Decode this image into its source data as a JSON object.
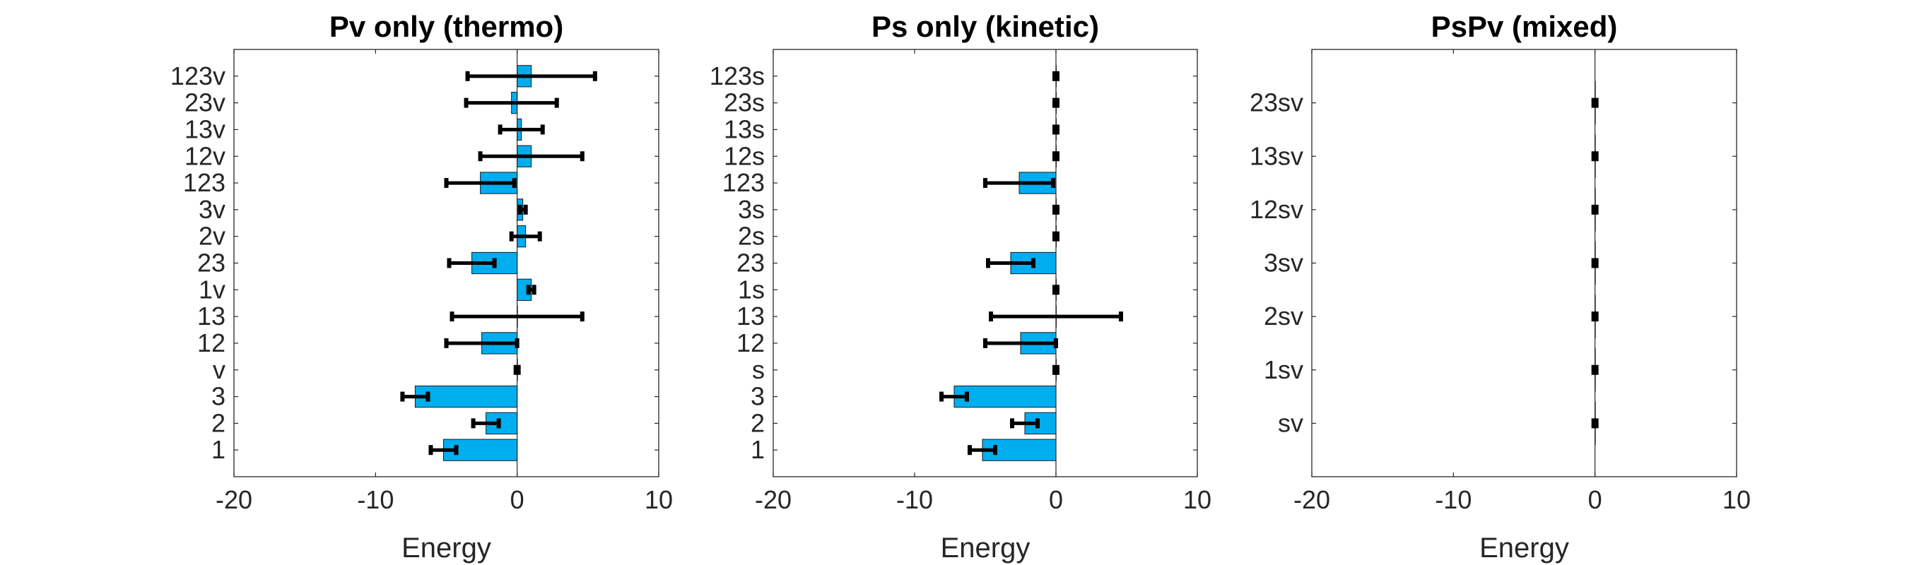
{
  "colors": {
    "bar": "#00aeef",
    "bar_edge": "#1a1a1a",
    "errorbar": "#000000",
    "axes": "#262626"
  },
  "chart_data": [
    {
      "type": "bar",
      "orientation": "horizontal",
      "title": "Pv only (thermo)",
      "xlabel": "Energy",
      "ylabel": "",
      "xlim": [
        -20,
        10
      ],
      "xticks": [
        "-20",
        "-10",
        "0",
        "10"
      ],
      "grid": false,
      "categories": [
        "1",
        "2",
        "3",
        "v",
        "12",
        "13",
        "1v",
        "23",
        "2v",
        "3v",
        "123",
        "12v",
        "13v",
        "23v",
        "123v"
      ],
      "values": [
        -5.2,
        -2.2,
        -7.2,
        0,
        -2.5,
        0,
        1.0,
        -3.2,
        0.6,
        0.4,
        -2.6,
        1.0,
        0.3,
        -0.4,
        1.0
      ],
      "error": [
        0.9,
        0.9,
        0.9,
        0.1,
        2.5,
        4.6,
        0.2,
        1.6,
        1.0,
        0.2,
        2.4,
        3.6,
        1.5,
        3.2,
        4.5
      ]
    },
    {
      "type": "bar",
      "orientation": "horizontal",
      "title": "Ps only (kinetic)",
      "xlabel": "Energy",
      "ylabel": "",
      "xlim": [
        -20,
        10
      ],
      "xticks": [
        "-20",
        "-10",
        "0",
        "10"
      ],
      "grid": false,
      "categories": [
        "1",
        "2",
        "3",
        "s",
        "12",
        "13",
        "1s",
        "23",
        "2s",
        "3s",
        "123",
        "12s",
        "13s",
        "23s",
        "123s"
      ],
      "values": [
        -5.2,
        -2.2,
        -7.2,
        0,
        -2.5,
        0,
        0,
        -3.2,
        0,
        0,
        -2.6,
        0,
        0,
        0,
        0
      ],
      "error": [
        0.9,
        0.9,
        0.9,
        0.1,
        2.5,
        4.6,
        0.1,
        1.6,
        0.1,
        0.1,
        2.4,
        0.1,
        0.1,
        0.1,
        0.1
      ]
    },
    {
      "type": "bar",
      "orientation": "horizontal",
      "title": "PsPv (mixed)",
      "xlabel": "Energy",
      "ylabel": "",
      "xlim": [
        -20,
        10
      ],
      "xticks": [
        "-20",
        "-10",
        "0",
        "10"
      ],
      "grid": false,
      "categories": [
        "sv",
        "1sv",
        "2sv",
        "3sv",
        "12sv",
        "13sv",
        "23sv"
      ],
      "values": [
        0,
        0,
        0,
        0,
        0,
        0,
        0
      ],
      "error": [
        0.1,
        0.1,
        0.1,
        0.1,
        0.1,
        0.1,
        0.1
      ]
    }
  ]
}
